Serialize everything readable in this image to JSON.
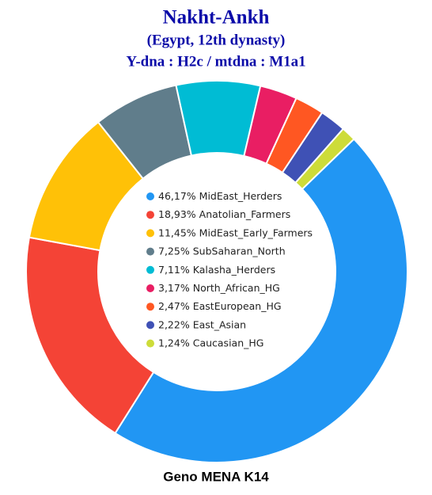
{
  "chart_data": {
    "type": "donut",
    "title": "Nakht-Ankh",
    "subtitles": [
      "(Egypt, 12th dynasty)",
      "Y-dna : H2c / mtdna : M1a1"
    ],
    "caption": "Geno MENA K14",
    "categories": [
      "MidEast_Herders",
      "Anatolian_Farmers",
      "MidEast_Early_Farmers",
      "SubSaharan_North",
      "Kalasha_Herders",
      "North_African_HG",
      "EastEuropean_HG",
      "East_Asian",
      "Caucasian_HG"
    ],
    "values": [
      46.17,
      18.93,
      11.45,
      7.25,
      7.11,
      3.17,
      2.47,
      2.22,
      1.24
    ],
    "value_labels": [
      "46,17%",
      "18,93%",
      "11,45%",
      "7,25%",
      "7,11%",
      "3,17%",
      "2,47%",
      "2,22%",
      "1,24%"
    ],
    "colors": [
      "#2196f3",
      "#f44336",
      "#ffc107",
      "#607d8b",
      "#00bcd4",
      "#e91e63",
      "#ff5722",
      "#3f51b5",
      "#cddc39"
    ]
  }
}
